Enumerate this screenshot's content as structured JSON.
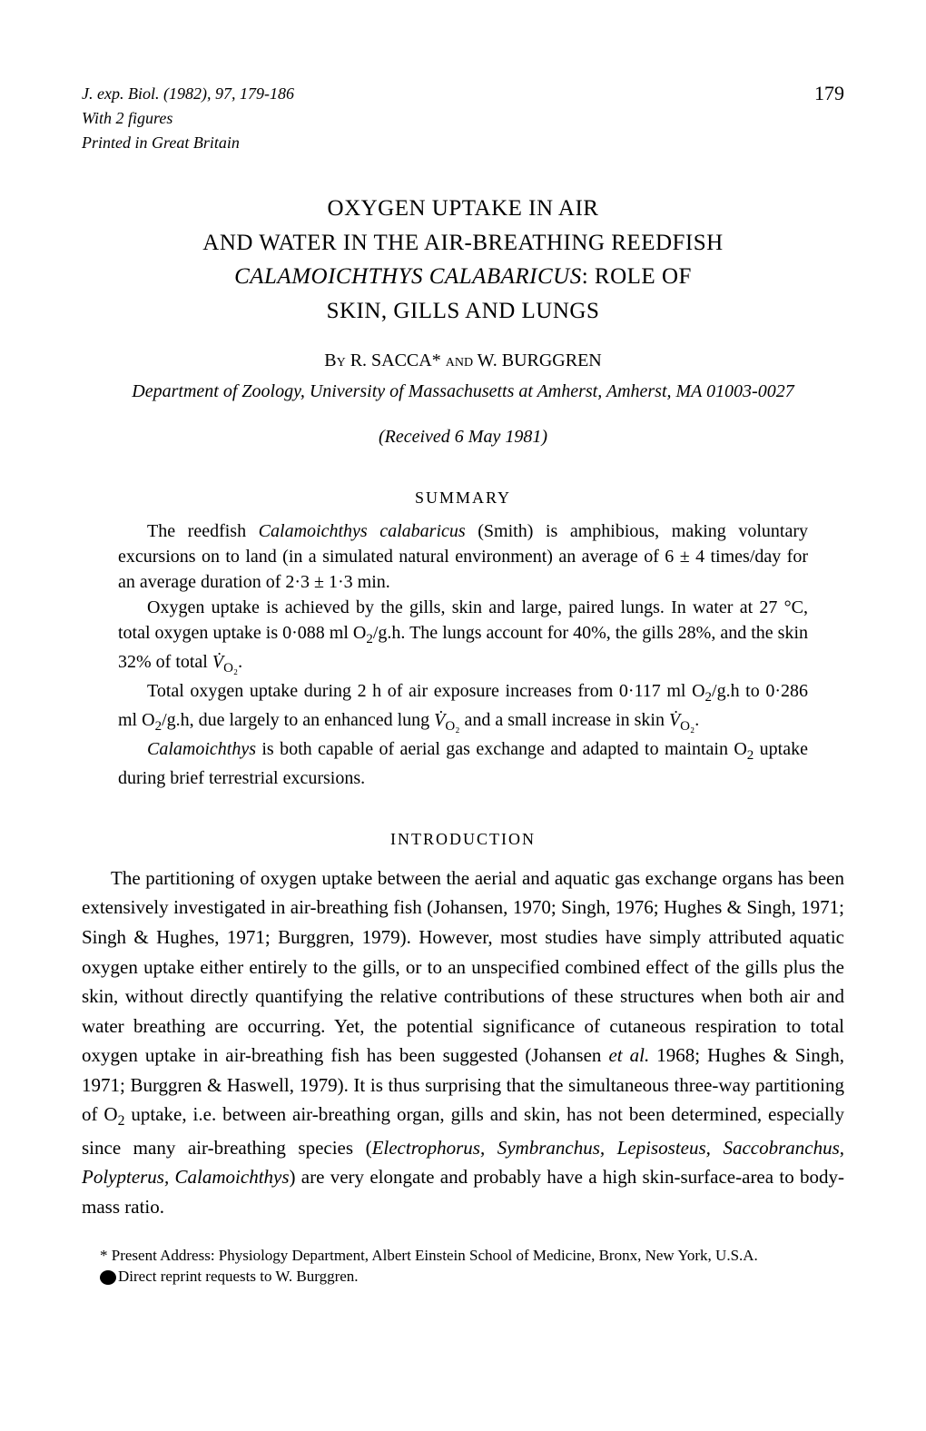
{
  "header": {
    "journal_ref": "J. exp. Biol. (1982), 97, 179-186",
    "with_figures": "With 2 figures",
    "printed": "Printed in Great Britain",
    "page_number": "179"
  },
  "title": {
    "line1": "OXYGEN UPTAKE IN AIR",
    "line2": "AND WATER IN THE AIR-BREATHING REEDFISH",
    "line3_italic": "CALAMOICHTHYS CALABARICUS",
    "line3_rest": ": ROLE OF",
    "line4": "SKIN, GILLS AND LUNGS"
  },
  "authors": {
    "by": "By",
    "text": " R. SACCA* and W. BURGGREN"
  },
  "affiliation": "Department of Zoology, University of Massachusetts at Amherst, Amherst, MA 01003-0027",
  "received": "(Received 6 May 1981)",
  "summary": {
    "heading": "SUMMARY",
    "paragraphs": [
      "The reedfish Calamoichthys calabaricus (Smith) is amphibious, making voluntary excursions on to land (in a simulated natural environment) an average of 6 ± 4 times/day for an average duration of 2·3 ± 1·3 min.",
      "Oxygen uptake is achieved by the gills, skin and large, paired lungs. In water at 27 °C, total oxygen uptake is 0·088 ml O₂/g.h. The lungs account for 40%, the gills 28%, and the skin 32% of total V̇O₂.",
      "Total oxygen uptake during 2 h of air exposure increases from 0·117 ml O₂/g.h to 0·286 ml O₂/g.h, due largely to an enhanced lung V̇O₂ and a small increase in skin V̇O₂.",
      "Calamoichthys is both capable of aerial gas exchange and adapted to maintain O₂ uptake during brief terrestrial excursions."
    ]
  },
  "introduction": {
    "heading": "INTRODUCTION",
    "text": "The partitioning of oxygen uptake between the aerial and aquatic gas exchange organs has been extensively investigated in air-breathing fish (Johansen, 1970; Singh, 1976; Hughes & Singh, 1971; Singh & Hughes, 1971; Burggren, 1979). However, most studies have simply attributed aquatic oxygen uptake either entirely to the gills, or to an unspecified combined effect of the gills plus the skin, without directly quantifying the relative contributions of these structures when both air and water breathing are occurring. Yet, the potential significance of cutaneous respiration to total oxygen uptake in air-breathing fish has been suggested (Johansen et al. 1968; Hughes & Singh, 1971; Burggren & Haswell, 1979). It is thus surprising that the simultaneous three-way partitioning of O₂ uptake, i.e. between air-breathing organ, gills and skin, has not been determined, especially since many air-breathing species (Electrophorus, Symbranchus, Lepisosteus, Saccobranchus, Polypterus, Calamoichthys) are very elongate and probably have a high skin-surface-area to body-mass ratio."
  },
  "footnotes": {
    "note1": "* Present Address: Physiology Department, Albert Einstein School of Medicine, Bronx, New York, U.S.A.",
    "note2": "Direct reprint requests to W. Burggren."
  }
}
